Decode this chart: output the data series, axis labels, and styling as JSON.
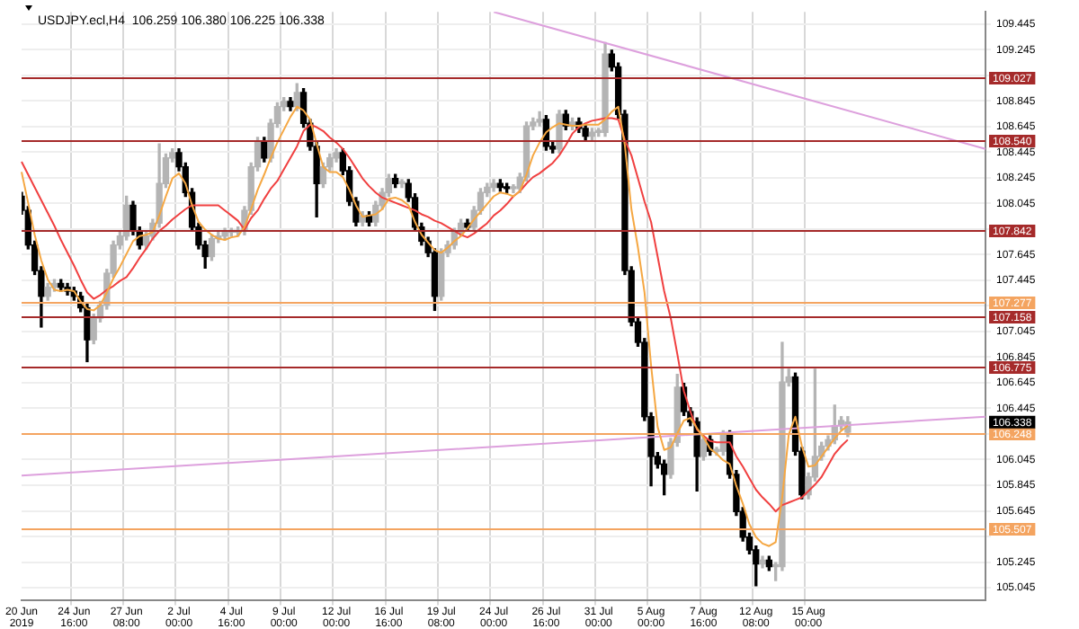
{
  "chart_data": {
    "type": "candlestick",
    "title": "USDJPY.ecl,H4  106.259 106.380 106.225 106.338",
    "categories": [
      "20 Jun 2019",
      null,
      null,
      null,
      null,
      null,
      null,
      null,
      "24 Jun 16:00",
      null,
      null,
      null,
      null,
      null,
      null,
      null,
      "27 Jun 08:00",
      null,
      null,
      null,
      null,
      null,
      null,
      null,
      "2 Jul 00:00",
      null,
      null,
      null,
      null,
      null,
      null,
      null,
      "4 Jul 16:00",
      null,
      null,
      null,
      null,
      null,
      null,
      null,
      "9 Jul 00:00",
      null,
      null,
      null,
      null,
      null,
      null,
      null,
      "12 Jul 00:00",
      null,
      null,
      null,
      null,
      null,
      null,
      null,
      "16 Jul 16:00",
      null,
      null,
      null,
      null,
      null,
      null,
      null,
      "19 Jul 08:00",
      null,
      null,
      null,
      null,
      null,
      null,
      null,
      "24 Jul 00:00",
      null,
      null,
      null,
      null,
      null,
      null,
      null,
      "26 Jul 16:00",
      null,
      null,
      null,
      null,
      null,
      null,
      null,
      "31 Jul 00:00",
      null,
      null,
      null,
      null,
      null,
      null,
      null,
      "5 Aug 00:00",
      null,
      null,
      null,
      null,
      null,
      null,
      null,
      "7 Aug 16:00",
      null,
      null,
      null,
      null,
      null,
      null,
      null,
      "12 Aug 08:00",
      null,
      null,
      null,
      null,
      null,
      null,
      null,
      "15 Aug 00:00",
      null,
      null,
      null,
      null,
      null,
      null,
      null,
      null,
      null,
      null,
      null,
      null,
      null,
      null,
      null,
      null,
      null,
      null,
      null,
      null,
      null,
      null,
      null,
      null,
      null,
      null,
      null
    ],
    "ohlc": [
      [
        108.1,
        108.13,
        107.96,
        107.99
      ],
      [
        107.99,
        108.02,
        107.69,
        107.72
      ],
      [
        107.72,
        107.75,
        107.49,
        107.52
      ],
      [
        107.52,
        107.55,
        107.08,
        107.32
      ],
      [
        107.32,
        107.42,
        107.29,
        107.39
      ],
      [
        107.39,
        107.45,
        107.36,
        107.42
      ],
      [
        107.42,
        107.45,
        107.36,
        107.39
      ],
      [
        107.39,
        107.42,
        107.33,
        107.36
      ],
      [
        107.36,
        107.39,
        107.29,
        107.32
      ],
      [
        107.32,
        107.35,
        107.2,
        107.23
      ],
      [
        107.23,
        107.26,
        106.81,
        106.98
      ],
      [
        106.98,
        107.18,
        106.95,
        107.15
      ],
      [
        107.15,
        107.28,
        107.12,
        107.25
      ],
      [
        107.25,
        107.53,
        107.22,
        107.5
      ],
      [
        107.5,
        107.75,
        107.47,
        107.72
      ],
      [
        107.72,
        107.82,
        107.69,
        107.79
      ],
      [
        107.79,
        108.1,
        107.76,
        108.03
      ],
      [
        108.03,
        108.06,
        107.8,
        107.83
      ],
      [
        107.83,
        107.86,
        107.69,
        107.72
      ],
      [
        107.72,
        107.82,
        107.69,
        107.79
      ],
      [
        107.79,
        107.92,
        107.76,
        107.89
      ],
      [
        107.89,
        108.51,
        107.86,
        108.2
      ],
      [
        108.2,
        108.43,
        108.17,
        108.4
      ],
      [
        108.4,
        108.47,
        108.37,
        108.44
      ],
      [
        108.44,
        108.47,
        108.3,
        108.33
      ],
      [
        108.33,
        108.36,
        108.1,
        108.13
      ],
      [
        108.13,
        108.16,
        107.83,
        107.86
      ],
      [
        107.86,
        107.89,
        107.69,
        107.72
      ],
      [
        107.72,
        107.75,
        107.54,
        107.63
      ],
      [
        107.63,
        107.8,
        107.6,
        107.77
      ],
      [
        107.77,
        107.82,
        107.74,
        107.79
      ],
      [
        107.79,
        107.85,
        107.76,
        107.82
      ],
      [
        107.82,
        107.85,
        107.79,
        107.82
      ],
      [
        107.82,
        107.86,
        107.79,
        107.83
      ],
      [
        107.83,
        108.02,
        107.8,
        107.99
      ],
      [
        107.99,
        108.36,
        107.96,
        108.33
      ],
      [
        108.33,
        108.56,
        108.3,
        108.53
      ],
      [
        108.53,
        108.56,
        108.37,
        108.4
      ],
      [
        108.4,
        108.7,
        108.37,
        108.67
      ],
      [
        108.67,
        108.83,
        108.64,
        108.8
      ],
      [
        108.8,
        108.87,
        108.77,
        108.84
      ],
      [
        108.84,
        108.87,
        108.77,
        108.8
      ],
      [
        108.8,
        108.98,
        108.77,
        108.91
      ],
      [
        108.91,
        108.94,
        108.64,
        108.67
      ],
      [
        108.67,
        108.7,
        108.46,
        108.49
      ],
      [
        108.49,
        108.52,
        107.94,
        108.2
      ],
      [
        108.2,
        108.36,
        108.17,
        108.33
      ],
      [
        108.33,
        108.43,
        108.3,
        108.4
      ],
      [
        108.4,
        108.47,
        108.37,
        108.44
      ],
      [
        108.44,
        108.47,
        108.27,
        108.3
      ],
      [
        108.3,
        108.33,
        108.03,
        108.06
      ],
      [
        108.06,
        108.09,
        107.87,
        107.9
      ],
      [
        107.9,
        107.98,
        107.87,
        107.95
      ],
      [
        107.95,
        107.98,
        107.87,
        107.9
      ],
      [
        107.9,
        108.06,
        107.87,
        108.03
      ],
      [
        108.03,
        108.16,
        108.0,
        108.13
      ],
      [
        108.13,
        108.27,
        108.1,
        108.24
      ],
      [
        108.24,
        108.27,
        108.17,
        108.2
      ],
      [
        108.2,
        108.23,
        108.17,
        108.2
      ],
      [
        108.2,
        108.23,
        108.06,
        108.09
      ],
      [
        108.09,
        108.12,
        107.83,
        107.86
      ],
      [
        107.86,
        107.89,
        107.72,
        107.75
      ],
      [
        107.75,
        107.78,
        107.63,
        107.66
      ],
      [
        107.66,
        107.69,
        107.21,
        107.32
      ],
      [
        107.32,
        107.69,
        107.29,
        107.66
      ],
      [
        107.66,
        107.75,
        107.63,
        107.72
      ],
      [
        107.72,
        107.85,
        107.69,
        107.82
      ],
      [
        107.82,
        107.92,
        107.79,
        107.89
      ],
      [
        107.89,
        107.92,
        107.83,
        107.86
      ],
      [
        107.86,
        108.02,
        107.83,
        107.99
      ],
      [
        107.99,
        108.16,
        107.96,
        108.13
      ],
      [
        108.13,
        108.2,
        108.1,
        108.17
      ],
      [
        108.17,
        108.23,
        108.14,
        108.2
      ],
      [
        108.2,
        108.23,
        108.14,
        108.17
      ],
      [
        108.17,
        108.2,
        108.13,
        108.16
      ],
      [
        108.16,
        108.19,
        108.13,
        108.16
      ],
      [
        108.16,
        108.28,
        108.13,
        108.25
      ],
      [
        108.25,
        108.68,
        108.22,
        108.65
      ],
      [
        108.65,
        108.71,
        108.62,
        108.68
      ],
      [
        108.68,
        108.76,
        108.65,
        108.7
      ],
      [
        108.7,
        108.73,
        108.46,
        108.49
      ],
      [
        108.49,
        108.52,
        108.44,
        108.47
      ],
      [
        108.47,
        108.77,
        108.44,
        108.74
      ],
      [
        108.74,
        108.77,
        108.62,
        108.65
      ],
      [
        108.65,
        108.71,
        108.62,
        108.68
      ],
      [
        108.68,
        108.71,
        108.6,
        108.63
      ],
      [
        108.63,
        108.66,
        108.54,
        108.57
      ],
      [
        108.57,
        108.63,
        108.54,
        108.6
      ],
      [
        108.6,
        108.63,
        108.57,
        108.6
      ],
      [
        108.6,
        109.3,
        108.57,
        109.21
      ],
      [
        109.21,
        109.24,
        109.08,
        109.11
      ],
      [
        109.11,
        109.14,
        108.71,
        108.74
      ],
      [
        108.74,
        108.77,
        107.49,
        107.52
      ],
      [
        107.52,
        107.55,
        107.09,
        107.12
      ],
      [
        107.12,
        107.15,
        106.93,
        106.96
      ],
      [
        106.96,
        106.99,
        106.35,
        106.38
      ],
      [
        106.38,
        106.41,
        105.84,
        106.07
      ],
      [
        106.07,
        106.1,
        105.98,
        106.01
      ],
      [
        106.01,
        106.04,
        105.77,
        105.93
      ],
      [
        105.93,
        106.21,
        105.9,
        106.18
      ],
      [
        106.18,
        106.71,
        106.15,
        106.61
      ],
      [
        106.61,
        106.64,
        106.39,
        106.42
      ],
      [
        106.42,
        106.45,
        106.31,
        106.34
      ],
      [
        106.34,
        106.37,
        105.8,
        106.07
      ],
      [
        106.07,
        106.23,
        106.04,
        106.2
      ],
      [
        106.2,
        106.23,
        106.08,
        106.11
      ],
      [
        106.11,
        106.14,
        106.08,
        106.11
      ],
      [
        106.11,
        106.27,
        106.08,
        106.24
      ],
      [
        106.24,
        106.27,
        105.9,
        105.93
      ],
      [
        105.93,
        105.96,
        105.61,
        105.64
      ],
      [
        105.64,
        105.67,
        105.41,
        105.44
      ],
      [
        105.44,
        105.47,
        105.31,
        105.34
      ],
      [
        105.34,
        105.37,
        105.06,
        105.23
      ],
      [
        105.23,
        105.29,
        105.2,
        105.26
      ],
      [
        105.26,
        105.29,
        105.18,
        105.21
      ],
      [
        105.21,
        105.24,
        105.1,
        105.21
      ],
      [
        105.21,
        106.96,
        105.18,
        106.65
      ],
      [
        106.65,
        106.75,
        106.62,
        106.69
      ],
      [
        106.69,
        106.72,
        106.08,
        106.11
      ],
      [
        106.11,
        106.14,
        105.74,
        105.77
      ],
      [
        105.77,
        105.94,
        105.74,
        105.91
      ],
      [
        105.91,
        106.75,
        105.88,
        106.07
      ],
      [
        106.07,
        106.18,
        106.04,
        106.15
      ],
      [
        106.15,
        106.23,
        106.12,
        106.2
      ],
      [
        106.2,
        106.47,
        106.17,
        106.31
      ],
      [
        106.31,
        106.38,
        106.28,
        106.35
      ],
      [
        106.259,
        106.38,
        106.225,
        106.338
      ],
      null,
      null,
      null,
      null,
      null,
      null,
      null,
      null,
      null,
      null,
      null,
      null,
      null,
      null,
      null,
      null,
      null,
      null,
      null,
      null,
      null
    ],
    "series": [
      {
        "type": "line",
        "color": "#f5a742",
        "values": [
          108.29,
          108.05,
          107.8,
          107.6,
          107.45,
          107.37,
          107.36,
          107.37,
          107.36,
          107.28,
          107.22,
          107.21,
          107.25,
          107.35,
          107.46,
          107.55,
          107.65,
          107.75,
          107.79,
          107.8,
          107.82,
          107.95,
          108.1,
          108.24,
          108.28,
          108.2,
          108.03,
          107.9,
          107.84,
          107.8,
          107.77,
          107.76,
          107.78,
          107.79,
          107.86,
          108.0,
          108.15,
          108.27,
          108.4,
          108.52,
          108.62,
          108.72,
          108.8,
          108.77,
          108.7,
          108.51,
          108.33,
          108.29,
          108.29,
          108.25,
          108.15,
          108.03,
          107.94,
          107.95,
          107.96,
          108.0,
          108.08,
          108.09,
          108.07,
          108.03,
          107.9,
          107.8,
          107.74,
          107.68,
          107.66,
          107.7,
          107.75,
          107.79,
          107.85,
          107.92,
          107.98,
          108.04,
          108.1,
          108.13,
          108.12,
          108.1,
          108.14,
          108.27,
          108.42,
          108.52,
          108.6,
          108.64,
          108.67,
          108.66,
          108.65,
          108.65,
          108.66,
          108.66,
          108.66,
          108.7,
          108.76,
          108.8,
          108.5,
          108.0,
          107.7,
          107.35,
          106.78,
          106.3,
          106.12,
          106.14,
          106.25,
          106.35,
          106.37,
          106.29,
          106.22,
          106.13,
          106.09,
          106.04,
          106.01,
          105.84,
          105.7,
          105.54,
          105.44,
          105.39,
          105.37,
          105.4,
          105.75,
          106.24,
          106.38,
          106.15,
          105.99,
          106.0,
          106.07,
          106.14,
          106.21,
          106.27,
          106.31,
          null,
          null,
          null,
          null,
          null,
          null,
          null,
          null,
          null,
          null,
          null,
          null,
          null,
          null,
          null,
          null,
          null,
          null,
          null,
          null,
          null
        ]
      },
      {
        "type": "line",
        "color": "#f04040",
        "values": [
          108.37,
          108.27,
          108.17,
          108.07,
          107.97,
          107.87,
          107.76,
          107.66,
          107.56,
          107.45,
          107.35,
          107.3,
          107.33,
          107.37,
          107.4,
          107.44,
          107.47,
          107.54,
          107.62,
          107.69,
          107.77,
          107.83,
          107.87,
          107.92,
          107.96,
          108.0,
          108.03,
          108.03,
          108.03,
          108.03,
          108.03,
          107.99,
          107.95,
          107.91,
          107.84,
          107.93,
          107.99,
          108.08,
          108.16,
          108.22,
          108.31,
          108.4,
          108.49,
          108.61,
          108.66,
          108.64,
          108.61,
          108.56,
          108.52,
          108.47,
          108.4,
          108.32,
          108.24,
          108.18,
          108.13,
          108.09,
          108.07,
          108.05,
          108.03,
          108.01,
          107.99,
          107.96,
          107.94,
          107.91,
          107.89,
          107.86,
          107.83,
          107.8,
          107.78,
          107.81,
          107.85,
          107.89,
          107.95,
          107.99,
          108.04,
          108.1,
          108.14,
          108.2,
          108.25,
          108.28,
          108.32,
          108.36,
          108.42,
          108.5,
          108.59,
          108.64,
          108.67,
          108.69,
          108.7,
          108.71,
          108.71,
          108.7,
          108.54,
          108.42,
          108.24,
          108.06,
          107.9,
          107.63,
          107.36,
          107.15,
          106.87,
          106.58,
          106.42,
          106.28,
          106.23,
          106.19,
          106.18,
          106.18,
          106.18,
          106.07,
          105.99,
          105.9,
          105.81,
          105.75,
          105.7,
          105.64,
          105.69,
          105.71,
          105.73,
          105.75,
          105.8,
          105.85,
          105.91,
          106.0,
          106.09,
          106.15,
          106.2,
          null,
          null,
          null,
          null,
          null,
          null,
          null,
          null,
          null,
          null,
          null,
          null,
          null,
          null,
          null,
          null,
          null,
          null,
          null,
          null,
          null
        ]
      },
      {
        "type": "line",
        "color": "#dda0dd",
        "values": [
          null,
          null,
          null,
          null,
          null,
          null,
          null,
          null,
          null,
          null,
          null,
          null,
          null,
          null,
          null,
          null,
          null,
          null,
          null,
          null,
          null,
          null,
          null,
          null,
          null,
          null,
          null,
          null,
          null,
          null,
          null,
          null,
          null,
          null,
          null,
          null,
          null,
          null,
          null,
          null,
          null,
          null,
          null,
          null,
          null,
          null,
          null,
          null,
          null,
          null,
          null,
          null,
          null,
          null,
          null,
          null,
          null,
          null,
          null,
          null,
          null,
          null,
          null,
          null,
          null,
          null,
          null,
          null,
          null,
          null,
          null,
          null,
          109.54,
          null,
          null,
          null,
          null,
          null,
          null,
          null,
          null,
          null,
          null,
          null,
          null,
          null,
          null,
          null,
          null,
          null,
          null,
          null,
          null,
          null,
          null,
          null,
          null,
          null,
          null,
          null,
          null,
          null,
          null,
          null,
          null,
          null,
          null,
          null,
          null,
          null,
          null,
          null,
          null,
          null,
          null,
          null,
          null,
          null,
          null,
          null,
          null,
          null,
          null,
          null,
          null,
          null,
          null,
          null,
          null,
          null,
          null,
          null,
          null,
          null,
          null,
          null,
          null,
          null,
          null,
          null,
          null,
          null,
          null,
          null,
          null,
          null,
          null,
          108.47
        ]
      },
      {
        "type": "line",
        "color": "#dda0dd",
        "values": [
          105.92,
          null,
          null,
          null,
          null,
          null,
          null,
          null,
          null,
          null,
          null,
          null,
          null,
          null,
          null,
          null,
          null,
          null,
          null,
          null,
          null,
          null,
          null,
          null,
          null,
          null,
          null,
          null,
          null,
          null,
          null,
          null,
          null,
          null,
          null,
          null,
          null,
          null,
          null,
          null,
          null,
          null,
          null,
          null,
          null,
          null,
          null,
          null,
          null,
          null,
          null,
          null,
          null,
          null,
          null,
          null,
          null,
          null,
          null,
          null,
          null,
          null,
          null,
          null,
          null,
          null,
          null,
          null,
          null,
          null,
          null,
          null,
          null,
          null,
          null,
          null,
          null,
          null,
          null,
          null,
          null,
          null,
          null,
          null,
          null,
          null,
          null,
          null,
          null,
          null,
          null,
          null,
          null,
          null,
          null,
          null,
          null,
          null,
          null,
          null,
          null,
          null,
          null,
          null,
          null,
          null,
          null,
          null,
          null,
          null,
          null,
          null,
          null,
          null,
          null,
          null,
          null,
          null,
          null,
          null,
          null,
          null,
          null,
          null,
          null,
          null,
          null,
          null,
          null,
          null,
          null,
          null,
          null,
          null,
          null,
          null,
          null,
          null,
          null,
          null,
          null,
          null,
          null,
          null,
          null,
          null,
          null,
          106.38
        ]
      }
    ],
    "ylim": [
      104.95,
      109.54
    ],
    "yticks": [
      109.445,
      109.245,
      {
        "value": 109.045,
        "label": null
      },
      108.845,
      108.645,
      108.445,
      108.245,
      108.045,
      {
        "value": 107.845,
        "label": null
      },
      107.645,
      107.445,
      {
        "value": 107.245,
        "label": null
      },
      107.045,
      106.845,
      106.645,
      106.445,
      {
        "value": 106.245,
        "label": null
      },
      106.045,
      105.845,
      105.645,
      {
        "value": 105.445,
        "label": null
      },
      105.245,
      105.045
    ],
    "ref_lines": [
      {
        "axis": "y",
        "value": 109.027,
        "label": "109.027",
        "color": "#a52a2a"
      },
      {
        "axis": "y",
        "value": 108.54,
        "label": "108.540",
        "color": "#a52a2a"
      },
      {
        "axis": "y",
        "value": 107.842,
        "label": "107.842",
        "color": "#a52a2a"
      },
      {
        "axis": "y",
        "value": 107.277,
        "label": "107.277",
        "color": "#f4a460"
      },
      {
        "axis": "y",
        "value": 107.158,
        "label": "107.158",
        "color": "#a52a2a"
      },
      {
        "axis": "y",
        "value": 106.775,
        "label": "106.775",
        "color": "#a52a2a"
      },
      {
        "axis": "y",
        "value": 106.248,
        "label": "106.248",
        "color": "#f4a460"
      },
      {
        "axis": "y",
        "value": 105.507,
        "label": "105.507",
        "color": "#f4a460"
      }
    ],
    "annotations": [
      "106.338"
    ],
    "grid": true,
    "legend": false
  }
}
